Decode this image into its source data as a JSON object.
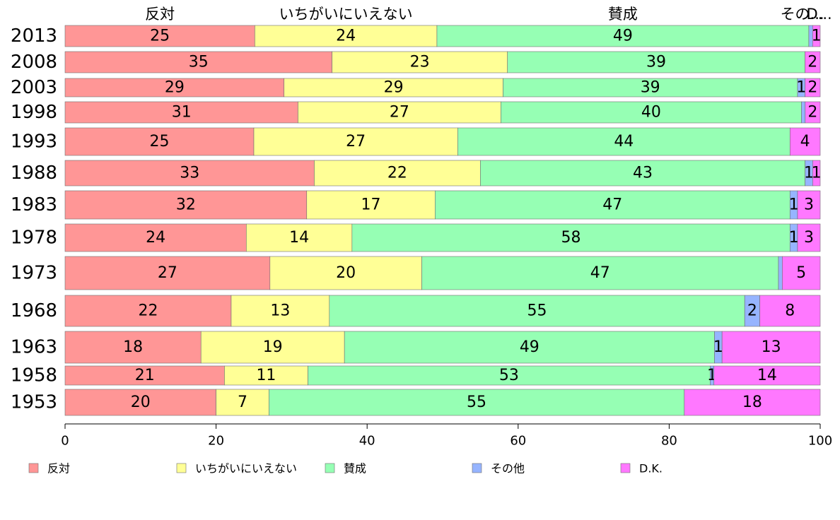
{
  "chart_data": {
    "type": "bar",
    "orientation": "horizontal",
    "stacked": true,
    "categories": [
      "2013",
      "2008",
      "2003",
      "1998",
      "1993",
      "1988",
      "1983",
      "1978",
      "1973",
      "1968",
      "1963",
      "1958",
      "1953"
    ],
    "series": [
      {
        "name": "反対",
        "color": "#ff9696",
        "values": [
          25,
          35,
          29,
          31,
          25,
          33,
          32,
          24,
          27,
          22,
          18,
          21,
          20
        ]
      },
      {
        "name": "いちがいにいえない",
        "color": "#ffff96",
        "values": [
          24,
          23,
          29,
          27,
          27,
          22,
          17,
          14,
          20,
          13,
          19,
          11,
          7
        ]
      },
      {
        "name": "賛成",
        "color": "#96ffb4",
        "values": [
          49,
          39,
          39,
          40,
          44,
          43,
          47,
          58,
          47,
          55,
          49,
          53,
          55
        ]
      },
      {
        "name": "その他",
        "color": "#96b4ff",
        "values": [
          0.5,
          0,
          1,
          0.5,
          0,
          1,
          1,
          1,
          0.5,
          2,
          1,
          0.5,
          0
        ]
      },
      {
        "name": "D.K.",
        "color": "#ff78ff",
        "values": [
          1,
          2,
          2,
          2,
          4,
          1,
          3,
          3,
          5,
          8,
          13,
          14,
          18
        ]
      }
    ],
    "bar_labels": [
      [
        "25",
        "24",
        "49",
        "",
        "1"
      ],
      [
        "35",
        "23",
        "39",
        "",
        "2"
      ],
      [
        "29",
        "29",
        "39",
        "1",
        "2"
      ],
      [
        "31",
        "27",
        "40",
        "",
        "2"
      ],
      [
        "25",
        "27",
        "44",
        "",
        "4"
      ],
      [
        "33",
        "22",
        "43",
        "1",
        "1"
      ],
      [
        "32",
        "17",
        "47",
        "1",
        "3"
      ],
      [
        "24",
        "14",
        "58",
        "1",
        "3"
      ],
      [
        "27",
        "20",
        "47",
        "",
        "5"
      ],
      [
        "22",
        "13",
        "55",
        "2",
        "8"
      ],
      [
        "18",
        "19",
        "49",
        "1",
        "13"
      ],
      [
        "21",
        "11",
        "53",
        "1",
        "14"
      ],
      [
        "20",
        "7",
        "55",
        "",
        "18"
      ]
    ],
    "top_labels": [
      "反対",
      "いちがいにいえない",
      "賛成",
      "その...",
      "D..."
    ],
    "xlim": [
      0,
      100
    ],
    "x_ticks": [
      "0",
      "20",
      "40",
      "60",
      "80",
      "100"
    ],
    "grid": false,
    "legend_position": "bottom"
  }
}
